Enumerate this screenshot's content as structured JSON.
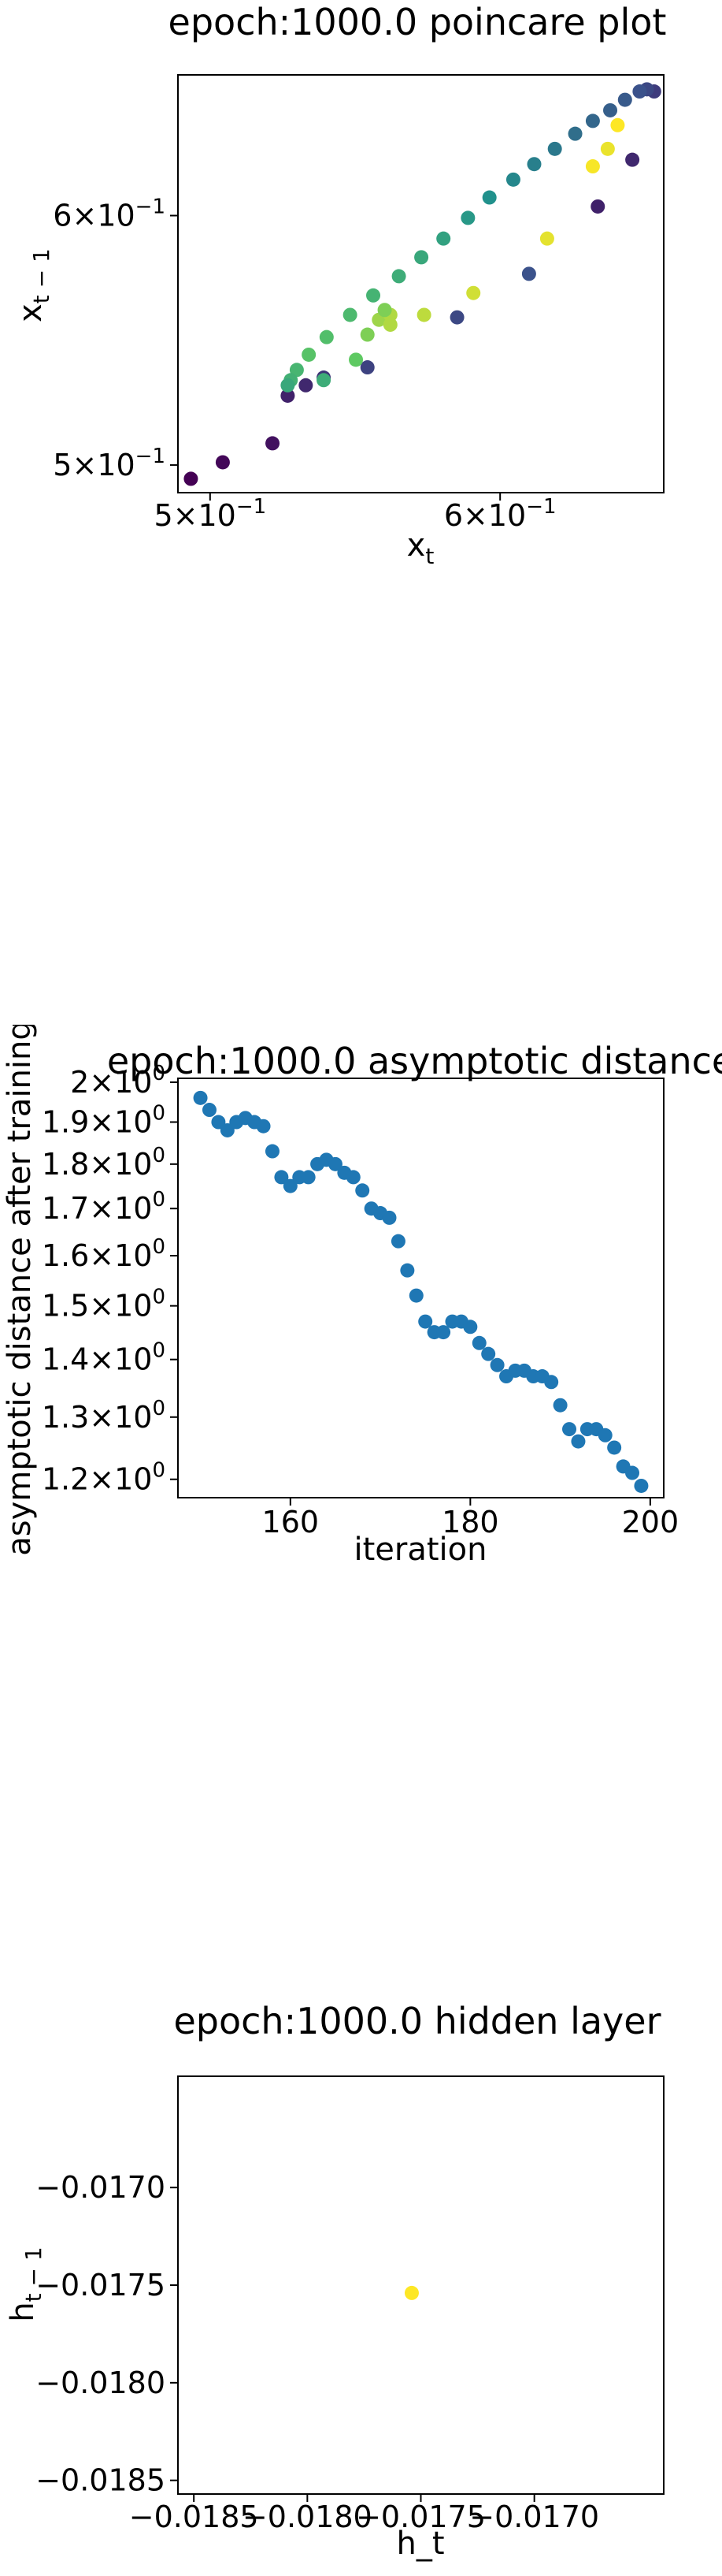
{
  "chart_data": [
    {
      "type": "scatter",
      "title": "epoch:1000.0 poincare plot",
      "xlabel": "x_t",
      "ylabel": "x_{t-1}",
      "xscale": "log",
      "yscale": "log",
      "xlim": [
        0.49,
        0.665
      ],
      "ylim": [
        0.49,
        0.665
      ],
      "colormap": "viridis",
      "xticks": [
        {
          "value": 0.5,
          "mant": "5",
          "exp": "−1"
        },
        {
          "value": 0.6,
          "mant": "6",
          "exp": "−1"
        }
      ],
      "yticks": [
        {
          "value": 0.5,
          "mant": "5",
          "exp": "−1"
        },
        {
          "value": 0.6,
          "mant": "6",
          "exp": "−1"
        }
      ],
      "points": [
        {
          "x": 0.494,
          "y": 0.495,
          "c": 0.0
        },
        {
          "x": 0.504,
          "y": 0.501,
          "c": 0.02
        },
        {
          "x": 0.52,
          "y": 0.508,
          "c": 0.05
        },
        {
          "x": 0.525,
          "y": 0.526,
          "c": 0.1
        },
        {
          "x": 0.531,
          "y": 0.53,
          "c": 0.12
        },
        {
          "x": 0.537,
          "y": 0.533,
          "c": 0.16
        },
        {
          "x": 0.552,
          "y": 0.537,
          "c": 0.2
        },
        {
          "x": 0.584,
          "y": 0.557,
          "c": 0.22
        },
        {
          "x": 0.611,
          "y": 0.575,
          "c": 0.25
        },
        {
          "x": 0.638,
          "y": 0.604,
          "c": 0.1
        },
        {
          "x": 0.652,
          "y": 0.625,
          "c": 0.12
        },
        {
          "x": 0.661,
          "y": 0.657,
          "c": 0.18
        },
        {
          "x": 0.658,
          "y": 0.658,
          "c": 0.22
        },
        {
          "x": 0.655,
          "y": 0.657,
          "c": 0.25
        },
        {
          "x": 0.649,
          "y": 0.653,
          "c": 0.28
        },
        {
          "x": 0.643,
          "y": 0.648,
          "c": 0.3
        },
        {
          "x": 0.636,
          "y": 0.643,
          "c": 0.33
        },
        {
          "x": 0.629,
          "y": 0.637,
          "c": 0.36
        },
        {
          "x": 0.621,
          "y": 0.63,
          "c": 0.4
        },
        {
          "x": 0.613,
          "y": 0.623,
          "c": 0.43
        },
        {
          "x": 0.605,
          "y": 0.616,
          "c": 0.46
        },
        {
          "x": 0.596,
          "y": 0.608,
          "c": 0.5
        },
        {
          "x": 0.588,
          "y": 0.599,
          "c": 0.53
        },
        {
          "x": 0.579,
          "y": 0.59,
          "c": 0.57
        },
        {
          "x": 0.571,
          "y": 0.582,
          "c": 0.6
        },
        {
          "x": 0.563,
          "y": 0.574,
          "c": 0.62
        },
        {
          "x": 0.554,
          "y": 0.566,
          "c": 0.65
        },
        {
          "x": 0.546,
          "y": 0.558,
          "c": 0.68
        },
        {
          "x": 0.538,
          "y": 0.549,
          "c": 0.7
        },
        {
          "x": 0.532,
          "y": 0.542,
          "c": 0.72
        },
        {
          "x": 0.528,
          "y": 0.536,
          "c": 0.66
        },
        {
          "x": 0.526,
          "y": 0.532,
          "c": 0.64
        },
        {
          "x": 0.525,
          "y": 0.53,
          "c": 0.6
        },
        {
          "x": 0.537,
          "y": 0.532,
          "c": 0.62
        },
        {
          "x": 0.548,
          "y": 0.54,
          "c": 0.75
        },
        {
          "x": 0.552,
          "y": 0.55,
          "c": 0.8
        },
        {
          "x": 0.556,
          "y": 0.556,
          "c": 0.85
        },
        {
          "x": 0.56,
          "y": 0.554,
          "c": 0.88
        },
        {
          "x": 0.56,
          "y": 0.558,
          "c": 0.88
        },
        {
          "x": 0.558,
          "y": 0.56,
          "c": 0.8
        },
        {
          "x": 0.572,
          "y": 0.558,
          "c": 0.9
        },
        {
          "x": 0.59,
          "y": 0.567,
          "c": 0.93
        },
        {
          "x": 0.618,
          "y": 0.59,
          "c": 0.96
        },
        {
          "x": 0.636,
          "y": 0.622,
          "c": 0.99
        },
        {
          "x": 0.642,
          "y": 0.63,
          "c": 0.97
        },
        {
          "x": 0.646,
          "y": 0.641,
          "c": 1.0
        }
      ]
    },
    {
      "type": "scatter",
      "title": "epoch:1000.0 asymptotic distance",
      "xlabel": "iteration",
      "ylabel": "asymptotic distance after training",
      "yscale": "log",
      "xlim": [
        147.5,
        201.5
      ],
      "ylim": [
        1.172,
        2.01
      ],
      "color": "#1f77b4",
      "xticks": [
        160,
        180,
        200
      ],
      "yticks": [
        {
          "value": 1.2,
          "mant": "1.2",
          "exp": "0"
        },
        {
          "value": 1.3,
          "mant": "1.3",
          "exp": "0"
        },
        {
          "value": 1.4,
          "mant": "1.4",
          "exp": "0"
        },
        {
          "value": 1.5,
          "mant": "1.5",
          "exp": "0"
        },
        {
          "value": 1.6,
          "mant": "1.6",
          "exp": "0"
        },
        {
          "value": 1.7,
          "mant": "1.7",
          "exp": "0"
        },
        {
          "value": 1.8,
          "mant": "1.8",
          "exp": "0"
        },
        {
          "value": 1.9,
          "mant": "1.9",
          "exp": "0"
        },
        {
          "value": 2.0,
          "mant": "2",
          "exp": "0"
        }
      ],
      "x": [
        150,
        151,
        152,
        153,
        154,
        155,
        156,
        157,
        158,
        159,
        160,
        161,
        162,
        163,
        164,
        165,
        166,
        167,
        168,
        169,
        170,
        171,
        172,
        173,
        174,
        175,
        176,
        177,
        178,
        179,
        180,
        181,
        182,
        183,
        184,
        185,
        186,
        187,
        188,
        189,
        190,
        191,
        192,
        193,
        194,
        195,
        196,
        197,
        198,
        199
      ],
      "y": [
        1.96,
        1.93,
        1.9,
        1.88,
        1.9,
        1.91,
        1.9,
        1.89,
        1.83,
        1.77,
        1.75,
        1.77,
        1.77,
        1.8,
        1.81,
        1.8,
        1.78,
        1.77,
        1.74,
        1.7,
        1.69,
        1.68,
        1.63,
        1.57,
        1.52,
        1.47,
        1.45,
        1.45,
        1.47,
        1.47,
        1.46,
        1.43,
        1.41,
        1.39,
        1.37,
        1.38,
        1.38,
        1.37,
        1.37,
        1.36,
        1.32,
        1.28,
        1.26,
        1.28,
        1.28,
        1.27,
        1.25,
        1.22,
        1.21,
        1.19
      ]
    },
    {
      "type": "scatter",
      "title": "epoch:1000.0 hidden layer",
      "xlabel": "h_t",
      "ylabel": "h_{t-1}",
      "xlim": [
        -0.01857,
        -0.01643
      ],
      "ylim": [
        -0.01857,
        -0.01643
      ],
      "color": "#fde725",
      "xticks": [
        {
          "value": -0.0185,
          "label": "−0.0185"
        },
        {
          "value": -0.018,
          "label": "−0.0180"
        },
        {
          "value": -0.0175,
          "label": "−0.0175"
        },
        {
          "value": -0.017,
          "label": "−0.0170"
        }
      ],
      "yticks": [
        {
          "value": -0.0185,
          "label": "−0.0185"
        },
        {
          "value": -0.018,
          "label": "−0.0180"
        },
        {
          "value": -0.0175,
          "label": "−0.0175"
        },
        {
          "value": -0.017,
          "label": "−0.0170"
        }
      ],
      "points": [
        {
          "x": -0.01754,
          "y": -0.01754
        }
      ]
    }
  ]
}
